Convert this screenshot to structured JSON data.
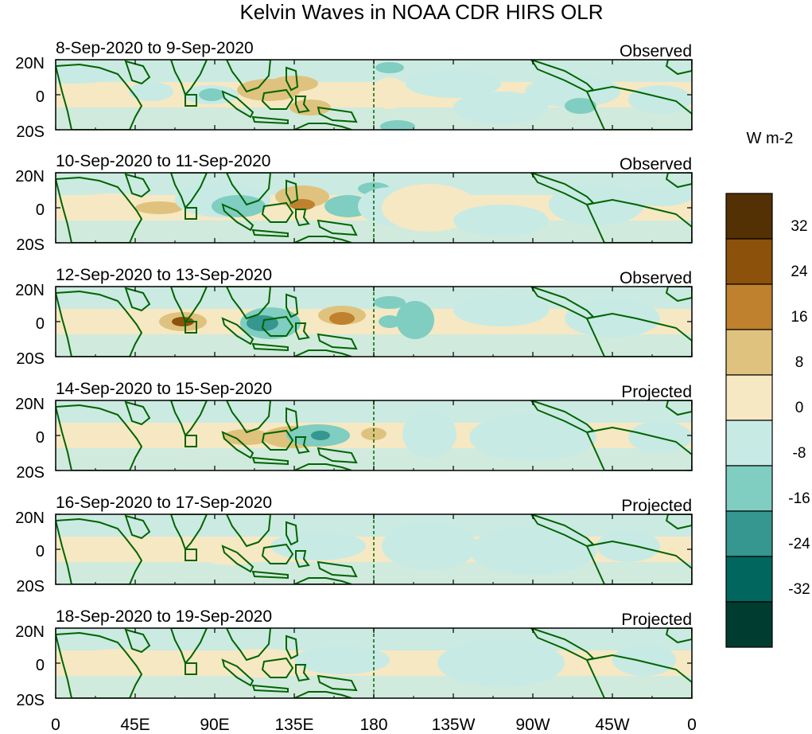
{
  "figure": {
    "title": "Kelvin Waves in NOAA CDR HIRS OLR"
  },
  "panels": [
    {
      "date_range": "8-Sep-2020 to 9-Sep-2020",
      "status": "Observed"
    },
    {
      "date_range": "10-Sep-2020 to 11-Sep-2020",
      "status": "Observed"
    },
    {
      "date_range": "12-Sep-2020 to 13-Sep-2020",
      "status": "Observed"
    },
    {
      "date_range": "14-Sep-2020 to 15-Sep-2020",
      "status": "Projected"
    },
    {
      "date_range": "16-Sep-2020 to 17-Sep-2020",
      "status": "Projected"
    },
    {
      "date_range": "18-Sep-2020 to 19-Sep-2020",
      "status": "Projected"
    }
  ],
  "axes": {
    "lat_labels": [
      "20N",
      "0",
      "20S"
    ],
    "lon_labels": [
      "0",
      "45E",
      "90E",
      "135E",
      "180",
      "135W",
      "90W",
      "45W",
      "0"
    ]
  },
  "colorbar": {
    "units": "W m-2",
    "levels": [
      "32",
      "24",
      "16",
      "8",
      "0",
      "-8",
      "-16",
      "-24",
      "-32"
    ],
    "colors": [
      "#543005",
      "#8c510a",
      "#bf812d",
      "#dfc27d",
      "#f6e8c3",
      "#c7eae5",
      "#80cdc1",
      "#35978f",
      "#01665e",
      "#003c30"
    ]
  },
  "colors": {
    "coastline": "#006400",
    "neutral_positive": "#f6e8c3",
    "neutral_negative": "#c7eae5"
  }
}
